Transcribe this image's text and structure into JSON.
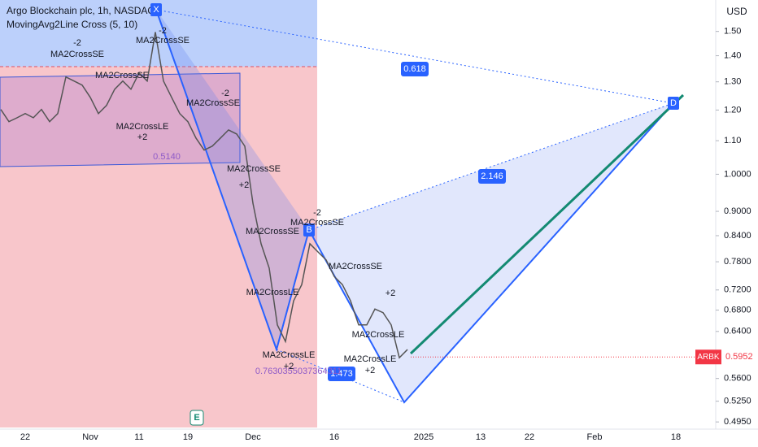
{
  "chart_data": {
    "type": "line",
    "title": "Argo Blockchain plc, 1h, NASDAQ",
    "subtitle": "MovingAvg2Line Cross (5, 10)",
    "currency": "USD",
    "symbol": "ARBK",
    "last_price": 0.5952,
    "log_scale": true,
    "ylim": [
      0.485,
      1.64
    ],
    "yticks": [
      {
        "value": 1.5,
        "label": "1.50"
      },
      {
        "value": 1.4,
        "label": "1.40"
      },
      {
        "value": 1.3,
        "label": "1.30"
      },
      {
        "value": 1.2,
        "label": "1.20"
      },
      {
        "value": 1.1,
        "label": "1.10"
      },
      {
        "value": 1.0,
        "label": "1.0000"
      },
      {
        "value": 0.9,
        "label": "0.9000"
      },
      {
        "value": 0.84,
        "label": "0.8400"
      },
      {
        "value": 0.78,
        "label": "0.7800"
      },
      {
        "value": 0.72,
        "label": "0.7200"
      },
      {
        "value": 0.68,
        "label": "0.6800"
      },
      {
        "value": 0.64,
        "label": "0.6400"
      },
      {
        "value": 0.6,
        "label": "0.6000"
      },
      {
        "value": 0.56,
        "label": "0.5600"
      },
      {
        "value": 0.525,
        "label": "0.5250"
      },
      {
        "value": 0.495,
        "label": "0.4950"
      }
    ],
    "categories": [
      null,
      null,
      null,
      "22",
      null,
      null,
      null,
      null,
      null,
      null,
      null,
      "Nov",
      null,
      null,
      null,
      null,
      null,
      "11",
      null,
      null,
      null,
      null,
      null,
      "19",
      null,
      null,
      null,
      null,
      null,
      null,
      null,
      "Dec",
      null,
      null,
      null,
      null,
      null,
      null,
      null,
      null,
      null,
      "16",
      null,
      null,
      null,
      null,
      null,
      null,
      null,
      null,
      null,
      null,
      "2025",
      null,
      null,
      null,
      null,
      null,
      null,
      "13",
      null,
      null,
      null,
      null,
      null,
      "22",
      null,
      null,
      null,
      null,
      null,
      null,
      null,
      "Feb",
      null,
      null,
      null,
      null,
      null,
      null,
      null,
      null,
      null,
      "18",
      null,
      null,
      null,
      null
    ],
    "series": [
      {
        "name": "ARBK",
        "color": "#555555",
        "values": [
          1.202,
          1.161,
          1.174,
          1.188,
          1.174,
          1.202,
          1.161,
          1.188,
          1.318,
          1.303,
          1.288,
          1.244,
          1.188,
          1.216,
          1.273,
          1.303,
          1.273,
          1.333,
          1.303,
          1.497,
          1.303,
          1.244,
          1.188,
          1.161,
          1.108,
          1.071,
          1.083,
          1.108,
          1.134,
          1.121,
          1.083,
          0.921,
          0.821,
          0.766,
          0.652,
          0.622,
          0.698,
          0.731,
          0.821,
          0.802,
          0.784,
          0.748,
          0.731,
          0.698,
          0.652,
          0.652,
          0.682,
          0.675,
          0.652,
          0.594,
          0.608,
          null,
          null,
          null,
          null,
          null,
          null,
          null,
          null,
          null,
          null,
          null,
          null,
          null,
          null,
          null,
          null,
          null,
          null,
          null,
          null,
          null,
          null,
          null,
          null,
          null,
          null,
          null,
          null,
          null,
          null,
          null,
          null,
          null,
          null,
          null,
          null,
          null
        ]
      }
    ],
    "pattern_points": [
      "X",
      "B",
      "D"
    ],
    "ratios": [
      "0.618",
      "2.146",
      "1.473",
      "0.7630355037364311",
      "0.5140"
    ],
    "annotations": [
      "-2",
      "MA2CrossSE",
      "MA2CrossSE",
      "-2",
      "MA2CrossSE",
      "MA2CrossLE",
      "+2",
      "MA2CrossSE",
      "-2",
      "MA2CrossSE",
      "MA2CrossSE",
      "MA2CrossLE",
      "+2",
      "MA2CrossLE",
      "+2",
      "MA2CrossSE",
      "-2",
      "MA2CrossSE",
      "MA2CrossLE",
      "+2",
      "MA2CrossLE",
      "+2"
    ],
    "event_icon": "E"
  }
}
